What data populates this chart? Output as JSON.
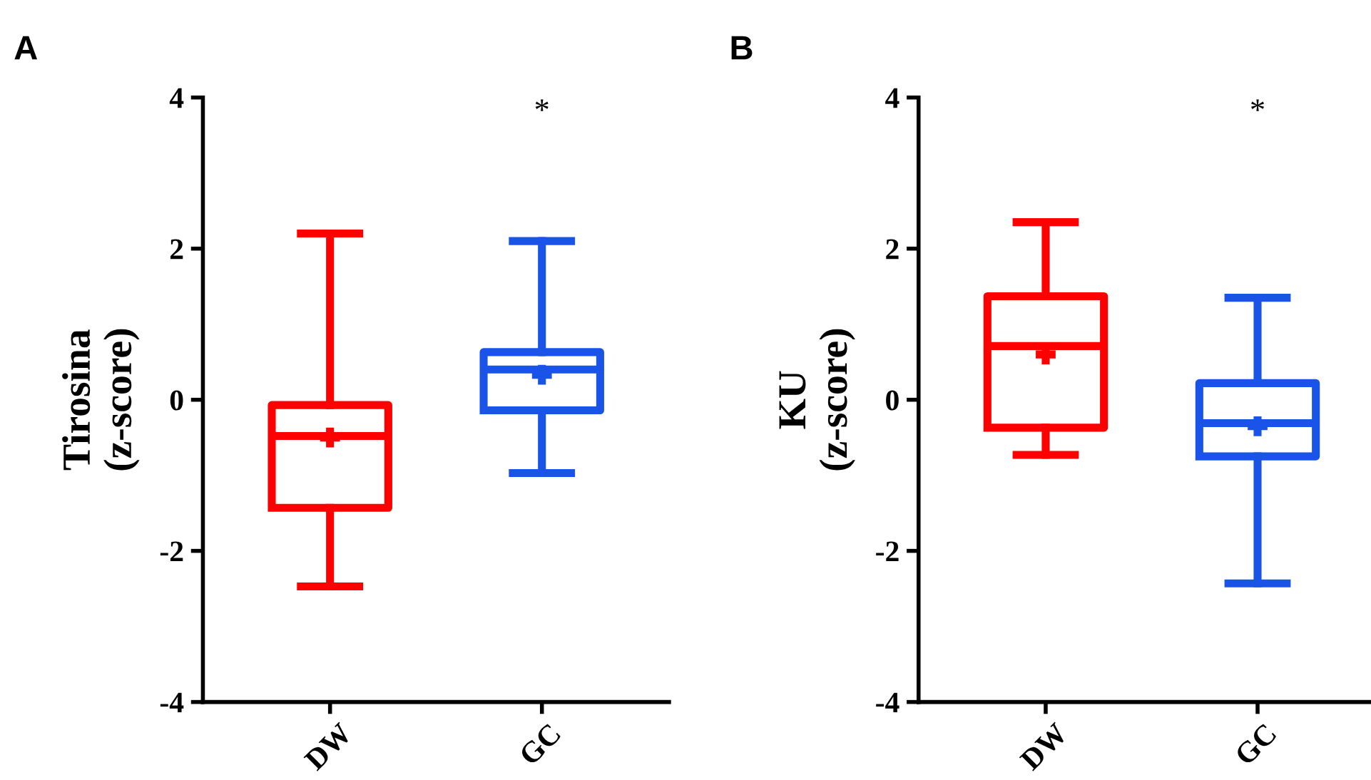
{
  "chart_data": [
    {
      "type": "box",
      "title": "A",
      "ylabel": "Tirosina\n(z-score)",
      "categories": [
        "DW",
        "GC"
      ],
      "colors": [
        "#ff0000",
        "#1a53e8"
      ],
      "ylim": [
        -4,
        4
      ],
      "yticks": [
        -4,
        -2,
        0,
        2,
        4
      ],
      "grid": false,
      "legend": false,
      "marker": "cross",
      "boxes": [
        {
          "low": -2.47,
          "q1": -1.43,
          "median": -0.48,
          "q3": -0.07,
          "high": 2.2,
          "mean": -0.5
        },
        {
          "low": -0.97,
          "q1": -0.14,
          "median": 0.4,
          "q3": 0.63,
          "high": 2.1,
          "mean": 0.33
        }
      ],
      "annotations": [
        "*"
      ]
    },
    {
      "type": "box",
      "title": "B",
      "ylabel": "KU\n(z-score)",
      "categories": [
        "DW",
        "GC"
      ],
      "colors": [
        "#ff0000",
        "#1a53e8"
      ],
      "ylim": [
        -4,
        4
      ],
      "yticks": [
        -4,
        -2,
        0,
        2,
        4
      ],
      "grid": false,
      "legend": false,
      "marker": "cross",
      "boxes": [
        {
          "low": -0.73,
          "q1": -0.37,
          "median": 0.71,
          "q3": 1.37,
          "high": 2.35,
          "mean": 0.6
        },
        {
          "low": -2.43,
          "q1": -0.75,
          "median": -0.31,
          "q3": 0.22,
          "high": 1.35,
          "mean": -0.35
        }
      ],
      "annotations": [
        "*"
      ]
    }
  ]
}
